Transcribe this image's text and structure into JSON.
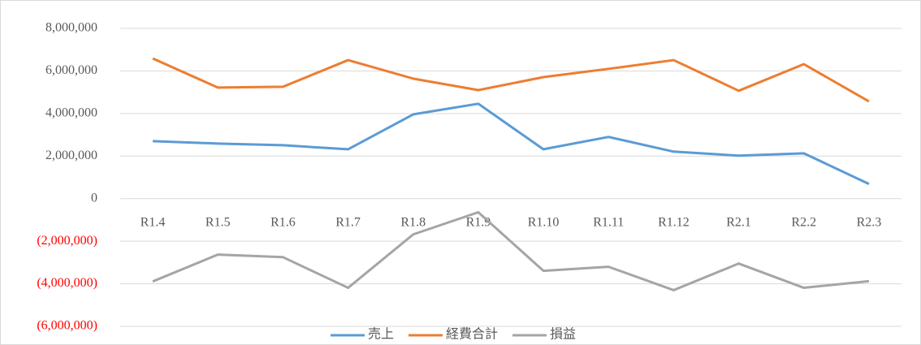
{
  "chart_data": {
    "type": "line",
    "categories": [
      "R1.4",
      "R1.5",
      "R1.6",
      "R1.7",
      "R1.8",
      "R1.9",
      "R1.10",
      "R1.11",
      "R1.12",
      "R2.1",
      "R2.2",
      "R2.3"
    ],
    "series": [
      {
        "name": "売上",
        "color": "#5b9bd5",
        "values": [
          2700000,
          2590000,
          2510000,
          2320000,
          3960000,
          4460000,
          2320000,
          2900000,
          2210000,
          2020000,
          2130000,
          690000
        ]
      },
      {
        "name": "経費合計",
        "color": "#ed7d31",
        "values": [
          6590000,
          5220000,
          5260000,
          6510000,
          5640000,
          5100000,
          5710000,
          6100000,
          6510000,
          5070000,
          6320000,
          4570000
        ]
      },
      {
        "name": "損益",
        "color": "#a5a5a5",
        "values": [
          -3890000,
          -2630000,
          -2750000,
          -4190000,
          -1680000,
          -640000,
          -3390000,
          -3200000,
          -4300000,
          -3050000,
          -4190000,
          -3880000
        ]
      }
    ],
    "ylim": [
      -6000000,
      8000000
    ],
    "yticks": [
      {
        "value": -6000000,
        "label": "(6,000,000)"
      },
      {
        "value": -4000000,
        "label": "(4,000,000)"
      },
      {
        "value": -2000000,
        "label": "(2,000,000)"
      },
      0,
      {
        "value": 2000000,
        "label": "2,000,000"
      },
      {
        "value": 4000000,
        "label": "4,000,000"
      },
      {
        "value": 6000000,
        "label": "6,000,000"
      },
      {
        "value": 8000000,
        "label": "8,000,000"
      }
    ],
    "grid": true,
    "negative_tick_color": "#ff0000",
    "legend": "bottom"
  }
}
